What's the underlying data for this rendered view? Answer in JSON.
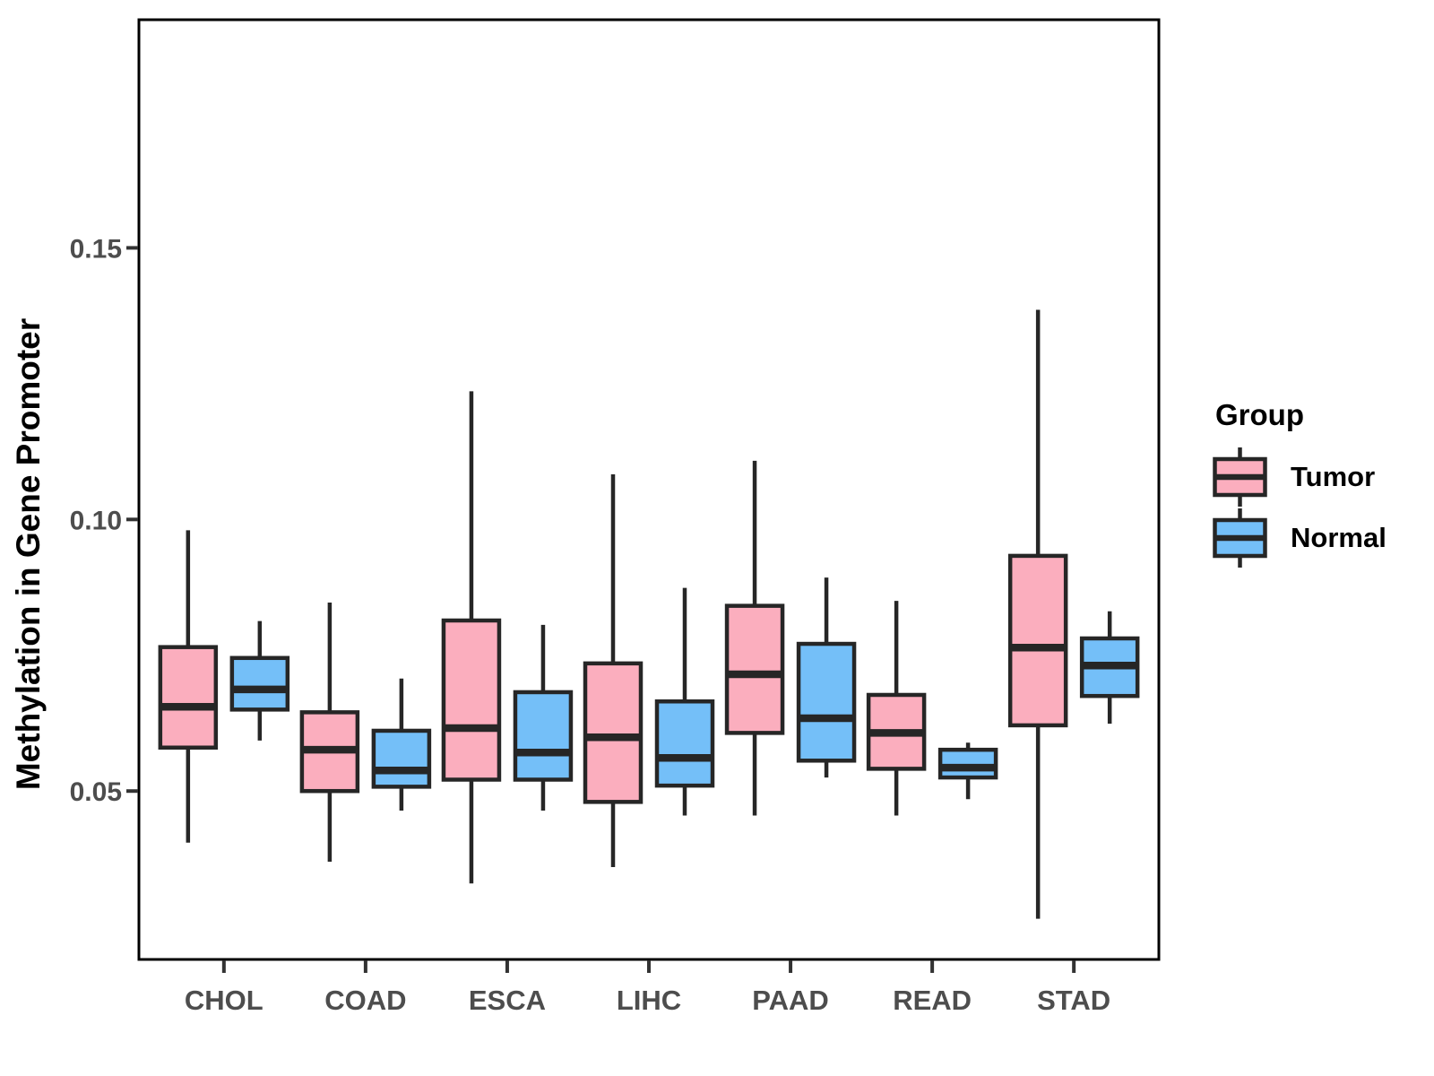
{
  "chart_data": {
    "type": "boxplot",
    "title": "",
    "xlabel": "",
    "ylabel": "Methylation in Gene Promoter",
    "categories": [
      "CHOL",
      "COAD",
      "ESCA",
      "LIHC",
      "PAAD",
      "READ",
      "STAD"
    ],
    "yticks": {
      "values": [
        0.05,
        0.1,
        0.15
      ],
      "labels": [
        "0.05",
        "0.10",
        "0.15"
      ]
    },
    "ylim": [
      0.019,
      0.192
    ],
    "grid": false,
    "legend_position": "right",
    "orientation": "vertical",
    "series": [
      {
        "name": "Tumor",
        "color": "#FBAEBE",
        "boxes": [
          {
            "category": "CHOL",
            "min": 0.0405,
            "q1": 0.058,
            "median": 0.0655,
            "q3": 0.0765,
            "max": 0.098
          },
          {
            "category": "COAD",
            "min": 0.037,
            "q1": 0.05,
            "median": 0.0576,
            "q3": 0.0645,
            "max": 0.0847
          },
          {
            "category": "ESCA",
            "min": 0.033,
            "q1": 0.0521,
            "median": 0.0616,
            "q3": 0.0814,
            "max": 0.1236
          },
          {
            "category": "LIHC",
            "min": 0.036,
            "q1": 0.048,
            "median": 0.0599,
            "q3": 0.0735,
            "max": 0.1083
          },
          {
            "category": "PAAD",
            "min": 0.0455,
            "q1": 0.0607,
            "median": 0.0715,
            "q3": 0.0841,
            "max": 0.1108
          },
          {
            "category": "READ",
            "min": 0.0455,
            "q1": 0.0541,
            "median": 0.0607,
            "q3": 0.0677,
            "max": 0.085
          },
          {
            "category": "STAD",
            "min": 0.0265,
            "q1": 0.0621,
            "median": 0.0764,
            "q3": 0.0933,
            "max": 0.1386
          }
        ]
      },
      {
        "name": "Normal",
        "color": "#74BFF8",
        "boxes": [
          {
            "category": "CHOL",
            "min": 0.0593,
            "q1": 0.065,
            "median": 0.0687,
            "q3": 0.0745,
            "max": 0.0813
          },
          {
            "category": "COAD",
            "min": 0.0464,
            "q1": 0.0508,
            "median": 0.0538,
            "q3": 0.0611,
            "max": 0.0707
          },
          {
            "category": "ESCA",
            "min": 0.0464,
            "q1": 0.0521,
            "median": 0.0571,
            "q3": 0.0682,
            "max": 0.0806
          },
          {
            "category": "LIHC",
            "min": 0.0455,
            "q1": 0.051,
            "median": 0.0561,
            "q3": 0.0665,
            "max": 0.0874
          },
          {
            "category": "PAAD",
            "min": 0.0525,
            "q1": 0.0556,
            "median": 0.0634,
            "q3": 0.0771,
            "max": 0.0893
          },
          {
            "category": "READ",
            "min": 0.0485,
            "q1": 0.0525,
            "median": 0.0543,
            "q3": 0.0576,
            "max": 0.0589
          },
          {
            "category": "STAD",
            "min": 0.0624,
            "q1": 0.0675,
            "median": 0.0731,
            "q3": 0.0781,
            "max": 0.0831
          }
        ]
      }
    ],
    "legend": {
      "title": "Group",
      "entries": [
        {
          "label": "Tumor",
          "color": "#FBAEBE"
        },
        {
          "label": "Normal",
          "color": "#74BFF8"
        }
      ]
    },
    "style": {
      "box_border_color": "#262626",
      "panel_border_color": "#000000",
      "tick_label_color": "#4D4D4D",
      "axis_title_color": "#000000"
    }
  }
}
